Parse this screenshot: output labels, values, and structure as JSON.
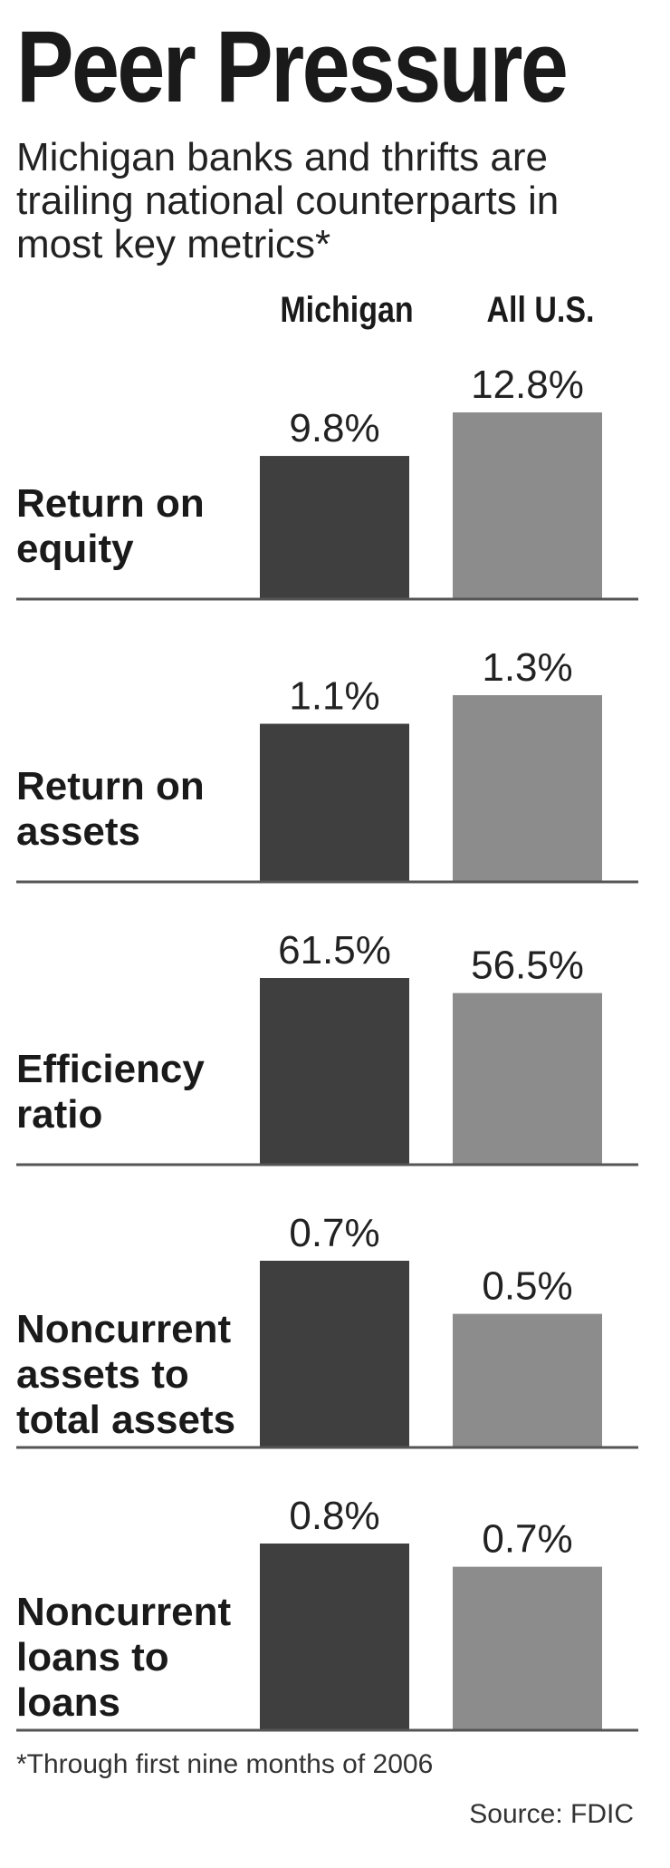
{
  "chart_data": {
    "type": "bar",
    "title": "Peer Pressure",
    "subtitle": "Michigan banks and thrifts are trailing national counterparts in most key metrics*",
    "series_labels": [
      "Michigan",
      "All U.S."
    ],
    "series_colors": [
      "#3f3f3f",
      "#8c8c8c"
    ],
    "groups": [
      {
        "label": [
          "Return on",
          "equity"
        ],
        "values": [
          9.8,
          12.8
        ],
        "value_labels": [
          "9.8%",
          "12.8%"
        ]
      },
      {
        "label": [
          "Return on",
          "assets"
        ],
        "values": [
          1.1,
          1.3
        ],
        "value_labels": [
          "1.1%",
          "1.3%"
        ]
      },
      {
        "label": [
          "Efficiency",
          "ratio"
        ],
        "values": [
          61.5,
          56.5
        ],
        "value_labels": [
          "61.5%",
          "56.5%"
        ]
      },
      {
        "label": [
          "Noncurrent",
          "assets to",
          "total assets"
        ],
        "values": [
          0.7,
          0.5
        ],
        "value_labels": [
          "0.7%",
          "0.5%"
        ]
      },
      {
        "label": [
          "Noncurrent",
          "loans to",
          "loans"
        ],
        "values": [
          0.8,
          0.7
        ],
        "value_labels": [
          "0.8%",
          "0.7%"
        ]
      }
    ],
    "footnote": "*Through first nine months of 2006",
    "source": "Source: FDIC"
  }
}
